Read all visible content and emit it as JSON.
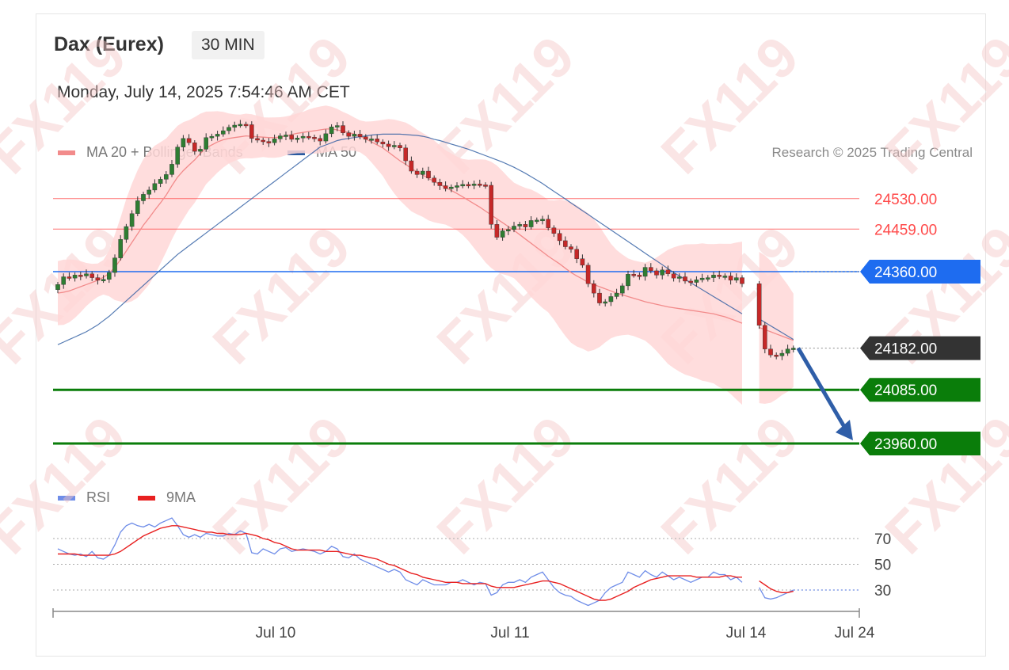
{
  "header": {
    "instrument": "Dax (Eurex)",
    "timeframe": "30 MIN",
    "datetime": "Monday, July 14, 2025 7:54:46 AM CET",
    "credit": "Research © 2025 Trading Central"
  },
  "legend": {
    "ma20": {
      "label": "MA 20 + Bollinger Bands",
      "color": "#f28b8b"
    },
    "ma50": {
      "label": "MA 50",
      "color": "#2a5aa0"
    }
  },
  "rsi_legend": {
    "rsi": {
      "label": "RSI",
      "color": "#6f8de8"
    },
    "ma9": {
      "label": "9MA",
      "color": "#e82020"
    }
  },
  "watermark": "FX119",
  "colors": {
    "resistance": "#ff4b4b",
    "pivot": "#1e6cf0",
    "support": "#0a7d0a",
    "last": "#333333",
    "candle_up": "#2e7d32",
    "candle_down": "#c62828",
    "band_fill": "#ffd7d7"
  },
  "chart_data": [
    {
      "type": "candlestick",
      "title": "Dax (Eurex) 30 MIN",
      "ylim": [
        23900,
        24600
      ],
      "x_ticks": [
        "Jul 10",
        "Jul 11",
        "Jul 14",
        "Jul 24"
      ],
      "levels": [
        {
          "value": 24530,
          "label": "24530.00",
          "kind": "resistance"
        },
        {
          "value": 24459,
          "label": "24459.00",
          "kind": "resistance"
        },
        {
          "value": 24360,
          "label": "24360.00",
          "kind": "pivot"
        },
        {
          "value": 24182,
          "label": "24182.00",
          "kind": "last"
        },
        {
          "value": 24085,
          "label": "24085.00",
          "kind": "support"
        },
        {
          "value": 23960,
          "label": "23960.00",
          "kind": "support"
        }
      ],
      "close": [
        24330,
        24348,
        24345,
        24352,
        24350,
        24355,
        24346,
        24340,
        24342,
        24358,
        24392,
        24435,
        24465,
        24495,
        24525,
        24540,
        24550,
        24565,
        24575,
        24586,
        24610,
        24650,
        24670,
        24660,
        24640,
        24645,
        24672,
        24675,
        24680,
        24688,
        24696,
        24701,
        24703,
        24702,
        24670,
        24666,
        24663,
        24660,
        24669,
        24676,
        24678,
        24668,
        24671,
        24675,
        24673,
        24670,
        24664,
        24681,
        24697,
        24700,
        24683,
        24675,
        24680,
        24674,
        24668,
        24669,
        24662,
        24657,
        24651,
        24654,
        24648,
        24618,
        24594,
        24586,
        24594,
        24578,
        24568,
        24560,
        24553,
        24557,
        24560,
        24563,
        24562,
        24564,
        24562,
        24561,
        24470,
        24440,
        24455,
        24458,
        24466,
        24470,
        24464,
        24479,
        24480,
        24482,
        24462,
        24449,
        24432,
        24418,
        24412,
        24390,
        24375,
        24332,
        24310,
        24287,
        24290,
        24302,
        24310,
        24327,
        24354,
        24352,
        24349,
        24370,
        24362,
        24352,
        24364,
        24355,
        24345,
        24348,
        24338,
        24335,
        24341,
        24345,
        24346,
        24352,
        24349,
        24350,
        24340,
        24346,
        24332,
        null,
        null,
        24235,
        24180,
        24166,
        24164,
        24170,
        24180,
        24182
      ],
      "ma20": [
        24310,
        24312,
        24315,
        24320,
        24325,
        24330,
        24335,
        24340,
        24347,
        24356,
        24370,
        24388,
        24408,
        24428,
        24448,
        24468,
        24485,
        24503,
        24520,
        24538,
        24560,
        24580,
        24595,
        24608,
        24620,
        24635,
        24648,
        24655,
        24662,
        24667,
        24670,
        24672,
        24674,
        24676,
        24675,
        24674,
        24673,
        24672,
        24672,
        24673,
        24676,
        24679,
        24682,
        24684,
        24686,
        24688,
        24690,
        24692,
        24692,
        24690,
        24687,
        24684,
        24680,
        24675,
        24669,
        24662,
        24655,
        24648,
        24638,
        24628,
        24618,
        24610,
        24600,
        24592,
        24585,
        24577,
        24570,
        24563,
        24556,
        24549,
        24542,
        24534,
        24526,
        24518,
        24510,
        24501,
        24492,
        24483,
        24474,
        24465,
        24456,
        24446,
        24436,
        24426,
        24416,
        24406,
        24396,
        24387,
        24378,
        24368,
        24358,
        24350,
        24343,
        24335,
        24330,
        24325,
        24320,
        24315,
        24310,
        24306,
        24302,
        24298,
        24294,
        24290,
        24287,
        24284,
        24281,
        24278,
        24276,
        24274,
        24272,
        24270,
        24268,
        24266,
        24264,
        24262,
        24258,
        24255,
        24250,
        24245,
        24240,
        null,
        null,
        24230,
        24225,
        24220,
        24215,
        24210,
        24205,
        24200
      ],
      "ma50": [
        24190,
        24196,
        24202,
        24208,
        24214,
        24220,
        24228,
        24236,
        24246,
        24256,
        24268,
        24280,
        24292,
        24304,
        24316,
        24328,
        24340,
        24352,
        24364,
        24376,
        24388,
        24400,
        24410,
        24420,
        24430,
        24440,
        24450,
        24460,
        24470,
        24480,
        24490,
        24500,
        24510,
        24520,
        24530,
        24540,
        24550,
        24560,
        24570,
        24580,
        24590,
        24600,
        24610,
        24620,
        24630,
        24640,
        24650,
        24655,
        24660,
        24665,
        24668,
        24670,
        24672,
        24674,
        24676,
        24678,
        24679,
        24680,
        24680,
        24680,
        24680,
        24679,
        24678,
        24677,
        24675,
        24672,
        24668,
        24665,
        24661,
        24657,
        24653,
        24649,
        24645,
        24640,
        24635,
        24630,
        24625,
        24620,
        24615,
        24609,
        24603,
        24596,
        24589,
        24581,
        24573,
        24565,
        24556,
        24547,
        24538,
        24529,
        24520,
        24511,
        24502,
        24493,
        24484,
        24475,
        24466,
        24457,
        24448,
        24439,
        24430,
        24421,
        24412,
        24403,
        24394,
        24385,
        24376,
        24367,
        24358,
        24350,
        24342,
        24334,
        24326,
        24318,
        24310,
        24302,
        24294,
        24286,
        24278,
        24270,
        24262,
        null,
        null,
        24250,
        24242,
        24234,
        24226,
        24218,
        24210,
        24202
      ],
      "series": [
        {
          "name": "MA 20 + Bollinger Bands",
          "values": "ma20"
        },
        {
          "name": "MA 50",
          "values": "ma50"
        }
      ],
      "forecast": {
        "from": 24182,
        "to": 23960,
        "direction": "down"
      }
    },
    {
      "type": "line",
      "title": "RSI",
      "ylim": [
        10,
        90
      ],
      "y_ticks": [
        70,
        50,
        30
      ],
      "series": [
        {
          "name": "RSI",
          "values": [
            62,
            60,
            58,
            57,
            58,
            56,
            60,
            55,
            54,
            57,
            65,
            75,
            80,
            82,
            80,
            79,
            81,
            79,
            82,
            84,
            86,
            80,
            73,
            71,
            73,
            71,
            74,
            73,
            72,
            72,
            74,
            73,
            76,
            74,
            59,
            58,
            62,
            60,
            58,
            62,
            63,
            60,
            61,
            62,
            61,
            60,
            58,
            60,
            64,
            62,
            56,
            55,
            58,
            54,
            52,
            50,
            48,
            46,
            44,
            46,
            44,
            38,
            36,
            34,
            38,
            36,
            34,
            34,
            34,
            36,
            36,
            38,
            36,
            34,
            36,
            35,
            26,
            28,
            34,
            36,
            36,
            38,
            36,
            40,
            42,
            44,
            38,
            32,
            28,
            26,
            25,
            22,
            20,
            18,
            20,
            22,
            28,
            32,
            34,
            36,
            44,
            42,
            40,
            45,
            42,
            40,
            44,
            41,
            38,
            40,
            38,
            36,
            38,
            40,
            40,
            44,
            42,
            42,
            38,
            40,
            36,
            null,
            null,
            32,
            24,
            23,
            24,
            26,
            28,
            30
          ]
        },
        {
          "name": "9MA",
          "values": [
            58,
            58,
            58,
            58,
            57,
            57,
            57,
            57,
            57,
            57,
            58,
            60,
            63,
            66,
            69,
            72,
            74,
            76,
            78,
            79,
            80,
            80,
            79,
            78,
            77,
            76,
            75,
            75,
            74,
            74,
            73,
            73,
            73,
            74,
            73,
            72,
            70,
            69,
            67,
            66,
            64,
            62,
            61,
            61,
            61,
            61,
            61,
            60,
            60,
            60,
            59,
            58,
            57,
            57,
            56,
            55,
            54,
            52,
            50,
            49,
            47,
            45,
            43,
            42,
            40,
            39,
            38,
            37,
            36,
            36,
            36,
            35,
            35,
            35,
            35,
            35,
            33,
            32,
            32,
            32,
            32,
            33,
            34,
            35,
            36,
            37,
            37,
            36,
            35,
            33,
            31,
            29,
            27,
            25,
            23,
            22,
            22,
            23,
            25,
            27,
            29,
            32,
            34,
            36,
            38,
            39,
            40,
            41,
            41,
            41,
            41,
            41,
            40,
            40,
            40,
            40,
            40,
            41,
            41,
            40,
            40,
            null,
            null,
            37,
            34,
            31,
            29,
            28,
            28,
            29
          ]
        }
      ]
    }
  ]
}
